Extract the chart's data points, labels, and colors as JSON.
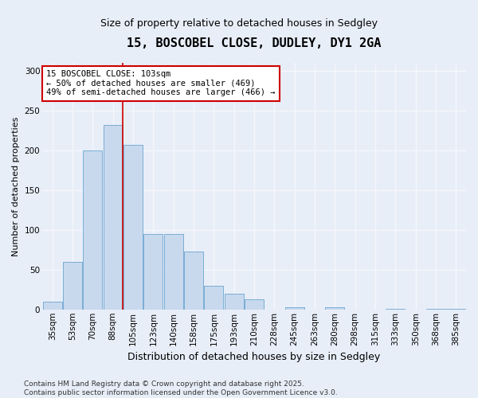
{
  "title": "15, BOSCOBEL CLOSE, DUDLEY, DY1 2GA",
  "subtitle": "Size of property relative to detached houses in Sedgley",
  "xlabel": "Distribution of detached houses by size in Sedgley",
  "ylabel": "Number of detached properties",
  "categories": [
    "35sqm",
    "53sqm",
    "70sqm",
    "88sqm",
    "105sqm",
    "123sqm",
    "140sqm",
    "158sqm",
    "175sqm",
    "193sqm",
    "210sqm",
    "228sqm",
    "245sqm",
    "263sqm",
    "280sqm",
    "298sqm",
    "315sqm",
    "333sqm",
    "350sqm",
    "368sqm",
    "385sqm"
  ],
  "values": [
    10,
    60,
    200,
    232,
    207,
    95,
    95,
    73,
    30,
    20,
    13,
    0,
    3,
    0,
    3,
    0,
    0,
    1,
    0,
    1,
    1
  ],
  "bar_color": "#c8d9ee",
  "bar_edge_color": "#7aadd4",
  "red_line_x": 3.5,
  "annotation_text": "15 BOSCOBEL CLOSE: 103sqm\n← 50% of detached houses are smaller (469)\n49% of semi-detached houses are larger (466) →",
  "annotation_box_facecolor": "#ffffff",
  "annotation_box_edgecolor": "#cc0000",
  "footer_line1": "Contains HM Land Registry data © Crown copyright and database right 2025.",
  "footer_line2": "Contains public sector information licensed under the Open Government Licence v3.0.",
  "ylim": [
    0,
    310
  ],
  "yticks": [
    0,
    50,
    100,
    150,
    200,
    250,
    300
  ],
  "background_color": "#e8eef8",
  "grid_color": "#f5f7fb",
  "title_fontsize": 11,
  "subtitle_fontsize": 9,
  "ylabel_fontsize": 8,
  "xlabel_fontsize": 9,
  "tick_fontsize": 7.5,
  "annot_fontsize": 7.5,
  "footer_fontsize": 6.5
}
